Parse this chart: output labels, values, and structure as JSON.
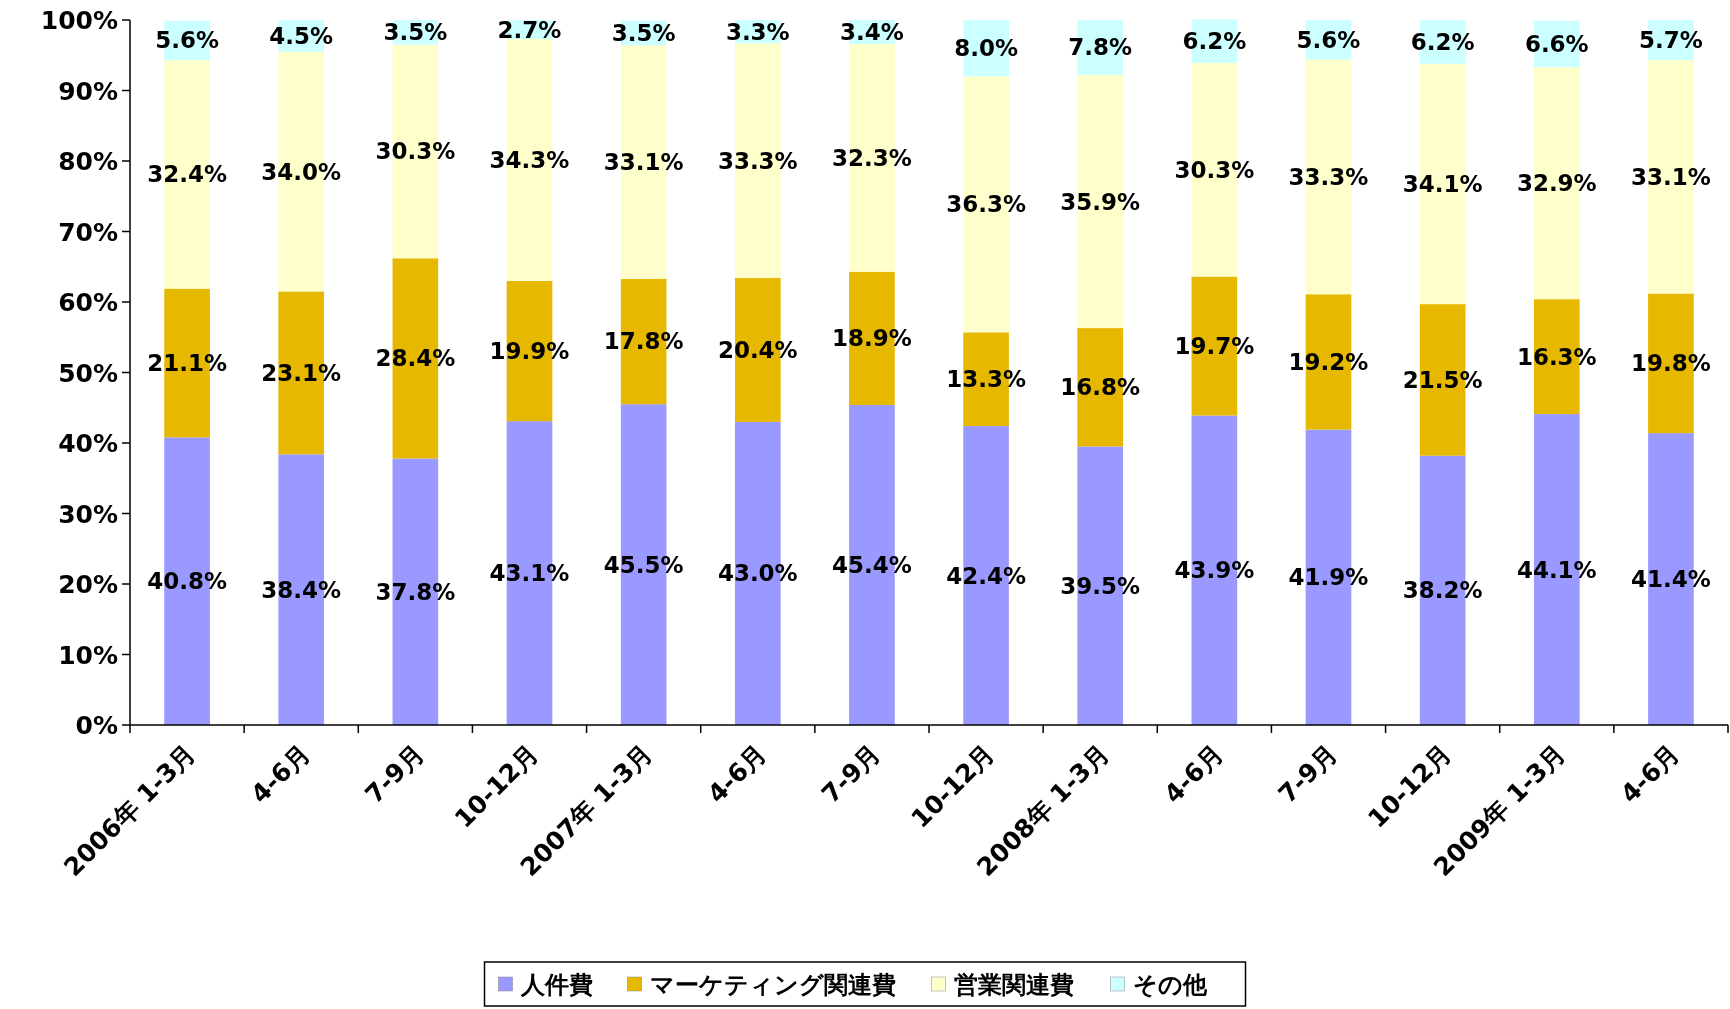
{
  "chart_data": {
    "type": "bar",
    "stacked": true,
    "categories": [
      "2006年 1-3月",
      "4-6月",
      "7-9月",
      "10-12月",
      "2007年 1-3月",
      "4-6月",
      "7-9月",
      "10-12月",
      "2008年 1-3月",
      "4-6月",
      "7-9月",
      "10-12月",
      "2009年 1-3月",
      "4-6月"
    ],
    "series": [
      {
        "name": "人件費",
        "color": "#9999ff",
        "values": [
          40.8,
          38.4,
          37.8,
          43.1,
          45.5,
          43.0,
          45.4,
          42.4,
          39.5,
          43.9,
          41.9,
          38.2,
          44.1,
          41.4
        ],
        "value_labels": [
          "40.8%",
          "38.4%",
          "37.8%",
          "43.1%",
          "45.5%",
          "43.0%",
          "45.4%",
          "42.4%",
          "39.5%",
          "43.9%",
          "41.9%",
          "38.2%",
          "44.1%",
          "41.4%"
        ]
      },
      {
        "name": "マーケティング関連費",
        "color": "#e6b800",
        "values": [
          21.1,
          23.1,
          28.4,
          19.9,
          17.8,
          20.4,
          18.9,
          13.3,
          16.8,
          19.7,
          19.2,
          21.5,
          16.3,
          19.8
        ],
        "value_labels": [
          "21.1%",
          "23.1%",
          "28.4%",
          "19.9%",
          "17.8%",
          "20.4%",
          "18.9%",
          "13.3%",
          "16.8%",
          "19.7%",
          "19.2%",
          "21.5%",
          "16.3%",
          "19.8%"
        ]
      },
      {
        "name": "営業関連費",
        "color": "#ffffcc",
        "values": [
          32.4,
          34.0,
          30.3,
          34.3,
          33.1,
          33.3,
          32.3,
          36.3,
          35.9,
          30.3,
          33.3,
          34.1,
          32.9,
          33.1
        ],
        "value_labels": [
          "32.4%",
          "34.0%",
          "30.3%",
          "34.3%",
          "33.1%",
          "33.3%",
          "32.3%",
          "36.3%",
          "35.9%",
          "30.3%",
          "33.3%",
          "34.1%",
          "32.9%",
          "33.1%"
        ]
      },
      {
        "name": "その他",
        "color": "#ccffff",
        "values": [
          5.6,
          4.5,
          3.5,
          2.7,
          3.5,
          3.3,
          3.4,
          8.0,
          7.8,
          6.2,
          5.6,
          6.2,
          6.6,
          5.7
        ],
        "value_labels": [
          "5.6%",
          "4.5%",
          "3.5%",
          "2.7%",
          "3.5%",
          "3.3%",
          "3.4%",
          "8.0%",
          "7.8%",
          "6.2%",
          "5.6%",
          "6.2%",
          "6.6%",
          "5.7%"
        ]
      }
    ],
    "ylim": [
      0,
      100
    ],
    "yticks": [
      {
        "value": 0,
        "label": "0%"
      },
      {
        "value": 10,
        "label": "10%"
      },
      {
        "value": 20,
        "label": "20%"
      },
      {
        "value": 30,
        "label": "30%"
      },
      {
        "value": 40,
        "label": "40%"
      },
      {
        "value": 50,
        "label": "50%"
      },
      {
        "value": 60,
        "label": "60%"
      },
      {
        "value": 70,
        "label": "70%"
      },
      {
        "value": 80,
        "label": "80%"
      },
      {
        "value": 90,
        "label": "90%"
      },
      {
        "value": 100,
        "label": "100%"
      }
    ],
    "grid": false,
    "legend": "bottom"
  }
}
